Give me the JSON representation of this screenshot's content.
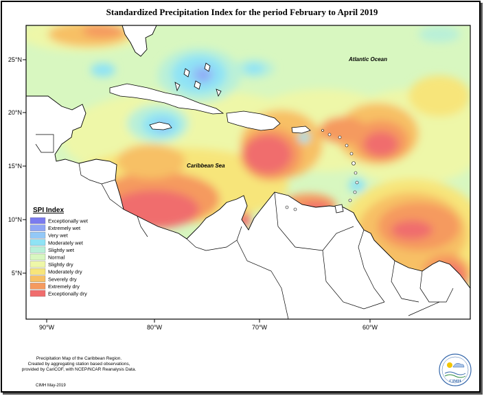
{
  "title": "Standardized Precipitation Index for the period February to April 2019",
  "map": {
    "lon_ticks": [
      "90°W",
      "80°W",
      "70°W",
      "60°W"
    ],
    "lat_ticks": [
      "25°N",
      "20°N",
      "15°N",
      "10°N",
      "5°N"
    ],
    "labels": {
      "atlantic": "Atlantic Ocean",
      "caribbean": "Caribbean Sea"
    }
  },
  "legend": {
    "title": "SPI Index",
    "items": [
      {
        "label": "Exceptionally wet",
        "color": "#7b7bef"
      },
      {
        "label": "Extremely wet",
        "color": "#8fa6f5"
      },
      {
        "label": "Very wet",
        "color": "#93c8f7"
      },
      {
        "label": "Moderately wet",
        "color": "#8fe3f5"
      },
      {
        "label": "Slightly wet",
        "color": "#b9f0d8"
      },
      {
        "label": "Normal",
        "color": "#d8f7c0"
      },
      {
        "label": "Slightly dry",
        "color": "#eef7a8"
      },
      {
        "label": "Moderately dry",
        "color": "#f7e57a"
      },
      {
        "label": "Severely dry",
        "color": "#f7c065"
      },
      {
        "label": "Extremely dry",
        "color": "#f59a5e"
      },
      {
        "label": "Exceptionally dry",
        "color": "#f06d6d"
      }
    ]
  },
  "footer": {
    "lines": [
      "Precipitation Map of the Caribbean Region.",
      "Created by aggregating station based observations,",
      "provided by CariCOF, with NCEP/NCAR Reanalysis Data."
    ],
    "credit": "CIMH May-2019",
    "logo_text": "CIMH"
  }
}
